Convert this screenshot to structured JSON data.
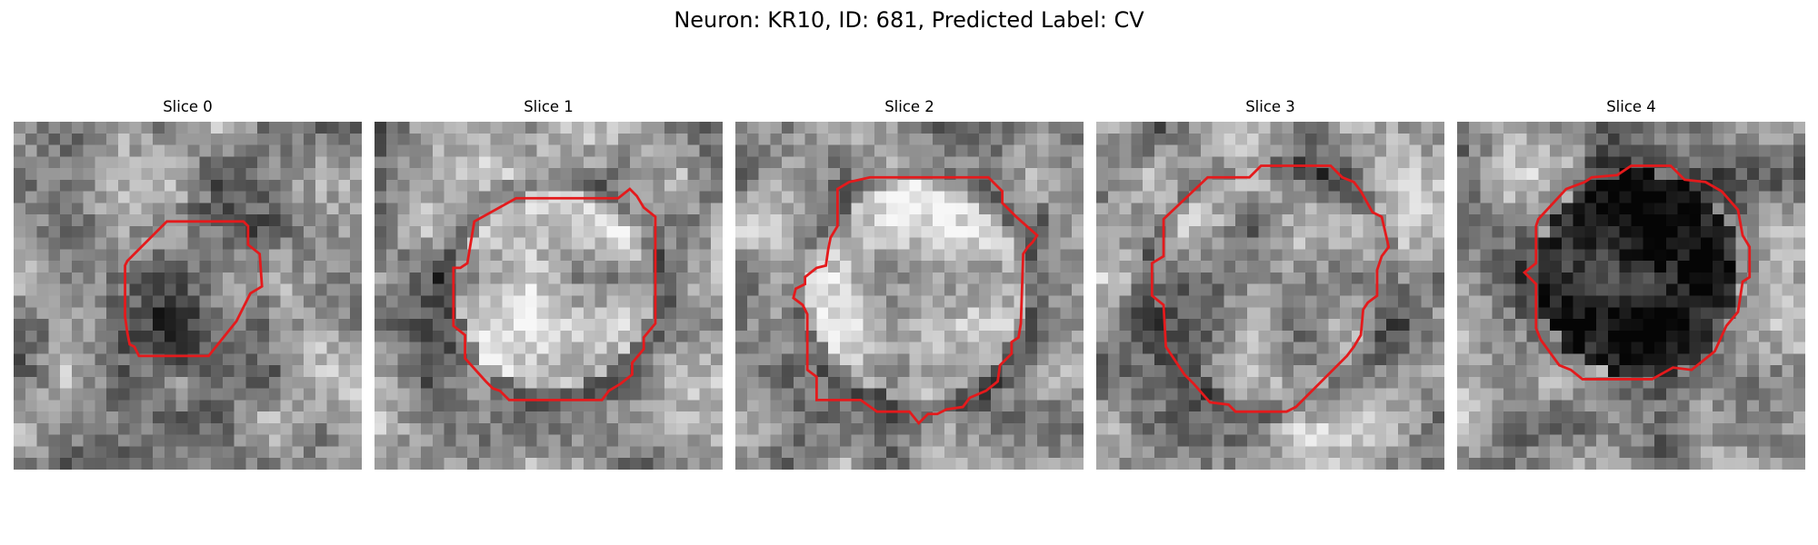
{
  "figure": {
    "title": "Neuron: KR10, ID: 681, Predicted Label: CV"
  },
  "panels": [
    {
      "title": "Slice 0"
    },
    {
      "title": "Slice 1"
    },
    {
      "title": "Slice 2"
    },
    {
      "title": "Slice 3"
    },
    {
      "title": "Slice 4"
    }
  ],
  "colors": {
    "contour": "#e41a1c",
    "background": "#ffffff",
    "colormap": "grayscale"
  }
}
